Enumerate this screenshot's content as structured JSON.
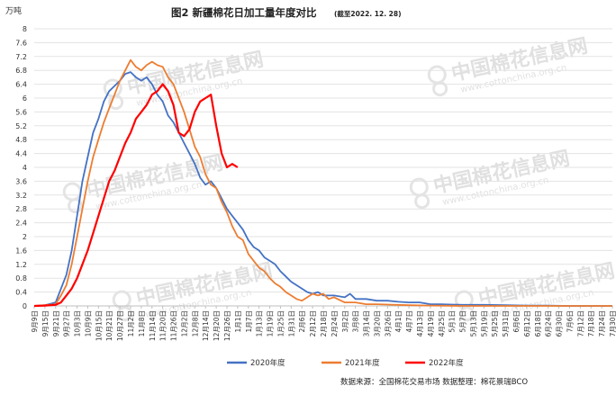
{
  "chart_data": {
    "type": "line",
    "title": "图2 新疆棉花日加工量年度对比",
    "title_note": "(截至2022. 12. 28)",
    "unit": "万吨",
    "ylim": [
      0,
      8
    ],
    "yticks": [
      "0",
      "0.4",
      "0.8",
      "1.2",
      "1.6",
      "2",
      "2.4",
      "2.8",
      "3.2",
      "3.6",
      "4",
      "4.4",
      "4.8",
      "5.2",
      "5.6",
      "6",
      "6.4",
      "6.8",
      "7.2",
      "7.6",
      "8"
    ],
    "grid": true,
    "legend_position": "bottom",
    "x_categories": [
      "9月9日",
      "9月15日",
      "9月21日",
      "9月27日",
      "10月3日",
      "10月9日",
      "10月15日",
      "10月21日",
      "10月27日",
      "11月2日",
      "11月8日",
      "11月14日",
      "11月20日",
      "11月26日",
      "12月2日",
      "12月8日",
      "12月14日",
      "12月20日",
      "12月26日",
      "1月1日",
      "1月7日",
      "1月13日",
      "1月19日",
      "1月25日",
      "1月31日",
      "2月6日",
      "2月12日",
      "2月18日",
      "2月24日",
      "3月2日",
      "3月8日",
      "3月14日",
      "3月20日",
      "3月26日",
      "4月1日",
      "4月7日",
      "4月13日",
      "4月19日",
      "4月25日",
      "5月1日",
      "5月7日",
      "5月13日",
      "5月19日",
      "5月25日",
      "5月31日",
      "6月6日",
      "6月12日",
      "6月18日",
      "6月24日",
      "6月30日",
      "7月6日",
      "7月12日",
      "7月18日",
      "7月24日",
      "7月30日"
    ],
    "x_step_days": 6,
    "series": [
      {
        "name": "2020年度",
        "color": "#4472C4",
        "width": 1.8,
        "points": [
          [
            0,
            0
          ],
          [
            1,
            0.02
          ],
          [
            2,
            0.1
          ],
          [
            3,
            0.9
          ],
          [
            3.5,
            1.6
          ],
          [
            4,
            2.6
          ],
          [
            4.5,
            3.6
          ],
          [
            5,
            4.3
          ],
          [
            5.5,
            5.0
          ],
          [
            6,
            5.4
          ],
          [
            6.5,
            5.9
          ],
          [
            7,
            6.2
          ],
          [
            7.5,
            6.35
          ],
          [
            8,
            6.5
          ],
          [
            8.5,
            6.7
          ],
          [
            9,
            6.75
          ],
          [
            9.5,
            6.6
          ],
          [
            10,
            6.5
          ],
          [
            10.5,
            6.6
          ],
          [
            11,
            6.4
          ],
          [
            11.5,
            6.1
          ],
          [
            12,
            5.9
          ],
          [
            12.5,
            5.5
          ],
          [
            13,
            5.3
          ],
          [
            13.5,
            5.0
          ],
          [
            14,
            4.7
          ],
          [
            14.5,
            4.4
          ],
          [
            15,
            4.1
          ],
          [
            15.5,
            3.7
          ],
          [
            16,
            3.5
          ],
          [
            16.5,
            3.6
          ],
          [
            17,
            3.4
          ],
          [
            17.5,
            3.1
          ],
          [
            18,
            2.8
          ],
          [
            18.5,
            2.6
          ],
          [
            19,
            2.4
          ],
          [
            19.5,
            2.2
          ],
          [
            20,
            1.9
          ],
          [
            20.5,
            1.7
          ],
          [
            21,
            1.6
          ],
          [
            21.5,
            1.4
          ],
          [
            22,
            1.3
          ],
          [
            22.5,
            1.2
          ],
          [
            23,
            1.0
          ],
          [
            23.5,
            0.85
          ],
          [
            24,
            0.7
          ],
          [
            25,
            0.5
          ],
          [
            25.5,
            0.4
          ],
          [
            26,
            0.35
          ],
          [
            26.5,
            0.4
          ],
          [
            27,
            0.3
          ],
          [
            28,
            0.3
          ],
          [
            29,
            0.25
          ],
          [
            29.5,
            0.35
          ],
          [
            30,
            0.2
          ],
          [
            31,
            0.2
          ],
          [
            32,
            0.15
          ],
          [
            33,
            0.15
          ],
          [
            34,
            0.12
          ],
          [
            35,
            0.1
          ],
          [
            36,
            0.1
          ],
          [
            37,
            0.05
          ],
          [
            38,
            0.05
          ],
          [
            39,
            0.04
          ],
          [
            40,
            0.03
          ],
          [
            42,
            0.03
          ],
          [
            44,
            0.02
          ],
          [
            46,
            0.01
          ],
          [
            48,
            0.01
          ],
          [
            50,
            0
          ],
          [
            54,
            0
          ]
        ]
      },
      {
        "name": "2021年度",
        "color": "#ED7D31",
        "width": 1.8,
        "points": [
          [
            0,
            0
          ],
          [
            1,
            0.02
          ],
          [
            2,
            0.05
          ],
          [
            2.5,
            0.3
          ],
          [
            3,
            0.6
          ],
          [
            3.5,
            1.2
          ],
          [
            4,
            2.0
          ],
          [
            4.5,
            2.8
          ],
          [
            5,
            3.6
          ],
          [
            5.5,
            4.3
          ],
          [
            6,
            4.8
          ],
          [
            6.5,
            5.3
          ],
          [
            7,
            5.7
          ],
          [
            7.5,
            6.1
          ],
          [
            8,
            6.5
          ],
          [
            8.5,
            6.8
          ],
          [
            9,
            7.1
          ],
          [
            9.5,
            6.9
          ],
          [
            10,
            6.8
          ],
          [
            10.5,
            6.95
          ],
          [
            11,
            7.05
          ],
          [
            11.5,
            6.95
          ],
          [
            12,
            6.9
          ],
          [
            12.5,
            6.6
          ],
          [
            13,
            6.4
          ],
          [
            13.5,
            6.0
          ],
          [
            14,
            5.6
          ],
          [
            14.5,
            5.1
          ],
          [
            15,
            4.6
          ],
          [
            15.5,
            4.3
          ],
          [
            16,
            3.8
          ],
          [
            16.5,
            3.5
          ],
          [
            17,
            3.4
          ],
          [
            17.5,
            3.0
          ],
          [
            18,
            2.7
          ],
          [
            18.5,
            2.3
          ],
          [
            19,
            2.0
          ],
          [
            19.5,
            1.9
          ],
          [
            20,
            1.5
          ],
          [
            20.5,
            1.3
          ],
          [
            21,
            1.1
          ],
          [
            21.5,
            1.0
          ],
          [
            22,
            0.8
          ],
          [
            22.5,
            0.65
          ],
          [
            23,
            0.55
          ],
          [
            23.5,
            0.4
          ],
          [
            24,
            0.3
          ],
          [
            24.5,
            0.2
          ],
          [
            25,
            0.15
          ],
          [
            25.5,
            0.25
          ],
          [
            26,
            0.35
          ],
          [
            26.5,
            0.3
          ],
          [
            27,
            0.35
          ],
          [
            27.5,
            0.2
          ],
          [
            28,
            0.25
          ],
          [
            29,
            0.1
          ],
          [
            30,
            0.1
          ],
          [
            31,
            0.05
          ],
          [
            32,
            0.05
          ],
          [
            33,
            0.04
          ],
          [
            35,
            0.02
          ],
          [
            37,
            0.01
          ],
          [
            40,
            0
          ],
          [
            54,
            0
          ]
        ]
      },
      {
        "name": "2022年度",
        "color": "#FF0000",
        "width": 2.2,
        "points": [
          [
            0,
            0
          ],
          [
            1,
            0.01
          ],
          [
            2,
            0.03
          ],
          [
            2.5,
            0.1
          ],
          [
            3,
            0.3
          ],
          [
            3.5,
            0.5
          ],
          [
            4,
            0.8
          ],
          [
            4.5,
            1.2
          ],
          [
            5,
            1.6
          ],
          [
            5.5,
            2.1
          ],
          [
            6,
            2.6
          ],
          [
            6.5,
            3.1
          ],
          [
            7,
            3.6
          ],
          [
            7.5,
            3.9
          ],
          [
            8,
            4.3
          ],
          [
            8.5,
            4.7
          ],
          [
            9,
            5.0
          ],
          [
            9.5,
            5.4
          ],
          [
            10,
            5.6
          ],
          [
            10.5,
            5.8
          ],
          [
            11,
            6.1
          ],
          [
            11.5,
            6.2
          ],
          [
            12,
            6.4
          ],
          [
            12.5,
            6.2
          ],
          [
            13,
            5.8
          ],
          [
            13.5,
            5.0
          ],
          [
            14,
            4.9
          ],
          [
            14.5,
            5.1
          ],
          [
            15,
            5.6
          ],
          [
            15.5,
            5.9
          ],
          [
            16,
            6.0
          ],
          [
            16.5,
            6.1
          ],
          [
            17,
            5.2
          ],
          [
            17.5,
            4.4
          ],
          [
            18,
            4.0
          ],
          [
            18.5,
            4.1
          ],
          [
            19,
            4.0
          ]
        ]
      }
    ]
  },
  "watermark": {
    "brand": "中国棉花信息网",
    "url": "www.cottonchina.org.cn"
  },
  "footer": {
    "source": "数据来源：全国棉花交易市场   数据整理：棉花景瑞BCO"
  }
}
